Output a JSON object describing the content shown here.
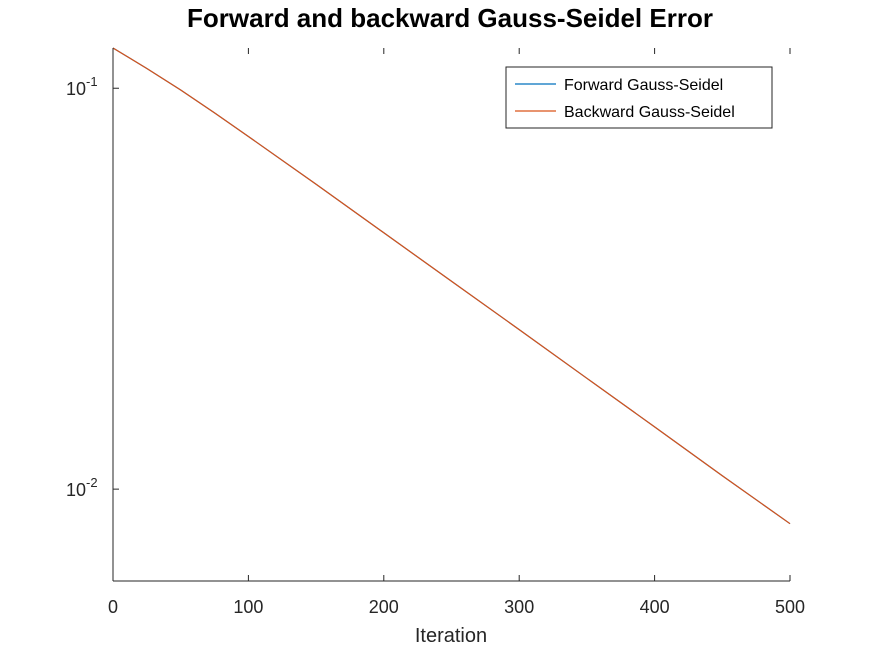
{
  "chart_data": {
    "type": "line",
    "title": "Forward and backward Gauss-Seidel Error",
    "xlabel": "Iteration",
    "ylabel": "",
    "xlim": [
      0,
      500
    ],
    "ylim": [
      0.0059,
      0.126
    ],
    "yscale": "log",
    "grid": false,
    "legend_position": "top-right",
    "x_ticks": [
      {
        "value": 0,
        "label": "0"
      },
      {
        "value": 100,
        "label": "100"
      },
      {
        "value": 200,
        "label": "200"
      },
      {
        "value": 300,
        "label": "300"
      },
      {
        "value": 400,
        "label": "400"
      },
      {
        "value": 500,
        "label": "500"
      }
    ],
    "y_ticks": [
      {
        "value": 0.1,
        "base": "10",
        "exp": "-1"
      },
      {
        "value": 0.01,
        "base": "10",
        "exp": "-2"
      }
    ],
    "series": [
      {
        "name": "Forward Gauss-Seidel",
        "color": "#0072bd",
        "x": [
          0,
          25,
          50,
          75,
          100,
          150,
          200,
          250,
          300,
          350,
          400,
          450,
          500
        ],
        "y": [
          0.126,
          0.112,
          0.099,
          0.0868,
          0.0758,
          0.0576,
          0.0436,
          0.033,
          0.025,
          0.0189,
          0.0143,
          0.0108,
          0.0082
        ]
      },
      {
        "name": "Backward Gauss-Seidel",
        "color": "#d95319",
        "x": [
          0,
          25,
          50,
          75,
          100,
          150,
          200,
          250,
          300,
          350,
          400,
          450,
          500
        ],
        "y": [
          0.126,
          0.112,
          0.099,
          0.0868,
          0.0758,
          0.0576,
          0.0436,
          0.033,
          0.025,
          0.0189,
          0.0143,
          0.0108,
          0.0082
        ]
      }
    ]
  }
}
